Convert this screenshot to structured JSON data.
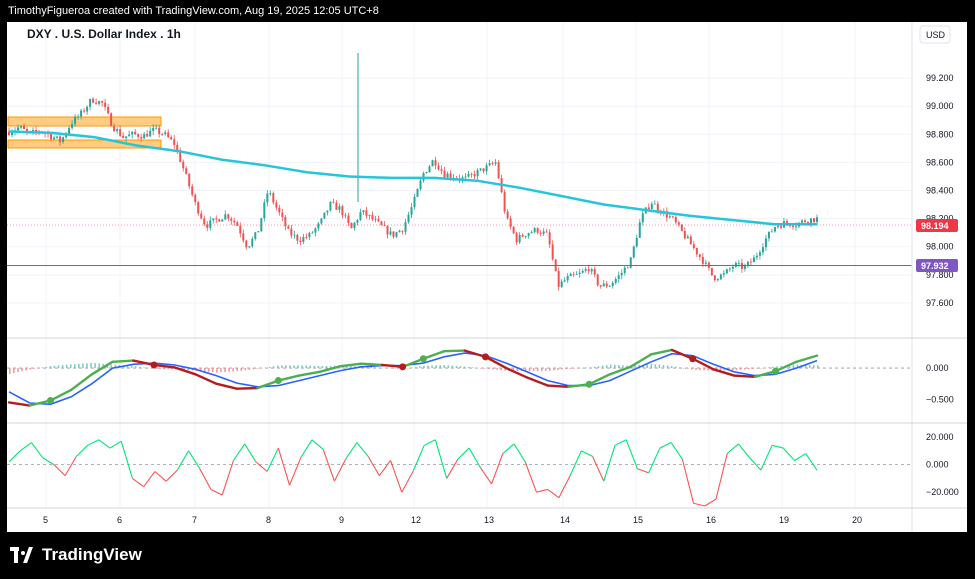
{
  "header": {
    "credit": "TimothyFigueroa created with TradingView.com, Aug 19, 2025 12:05 UTC+8"
  },
  "brand": {
    "name": "TradingView"
  },
  "chart_data": {
    "type": "candlestick",
    "title": "DXY . U.S. Dollar Index . 1h",
    "currency": "USD",
    "x_tick_labels": [
      "5",
      "6",
      "7",
      "8",
      "9",
      "12",
      "13",
      "14",
      "15",
      "16",
      "19",
      "20"
    ],
    "y_tick_labels": [
      "99.200",
      "99.000",
      "98.800",
      "98.600",
      "98.400",
      "98.200",
      "98.000",
      "97.800",
      "97.600"
    ],
    "ylim": [
      97.45,
      99.4
    ],
    "last_price": {
      "value": 98.194,
      "label": "98.194",
      "color": "#f23645"
    },
    "horizontal_line": {
      "value": 97.932,
      "label": "97.932",
      "color": "#7e57c2"
    },
    "supply_zones": [
      [
        98.87,
        98.92
      ],
      [
        98.7,
        98.75
      ]
    ],
    "price_path": [
      98.82,
      98.85,
      98.8,
      98.83,
      98.79,
      98.75,
      98.88,
      98.95,
      99.05,
      99.02,
      98.86,
      98.78,
      98.8,
      98.79,
      98.83,
      98.8,
      98.73,
      98.52,
      98.3,
      98.15,
      98.19,
      98.23,
      98.16,
      98.0,
      98.1,
      98.4,
      98.25,
      98.1,
      98.05,
      98.08,
      98.16,
      98.3,
      98.27,
      98.12,
      98.25,
      98.2,
      98.14,
      98.08,
      98.13,
      98.3,
      98.52,
      98.62,
      98.52,
      98.5,
      98.48,
      98.52,
      98.56,
      98.6,
      98.2,
      98.05,
      98.1,
      98.12,
      98.08,
      97.72,
      97.78,
      97.8,
      97.85,
      97.72,
      97.73,
      97.8,
      97.9,
      98.2,
      98.32,
      98.25,
      98.2,
      98.1,
      98.0,
      97.9,
      97.78,
      97.8,
      97.87,
      97.85,
      97.92,
      98.05,
      98.15,
      98.17,
      98.16,
      98.19,
      98.2
    ],
    "ma_line": {
      "color": "#26c6da",
      "values": [
        98.82,
        98.81,
        98.78,
        98.72,
        98.68,
        98.62,
        98.58,
        98.53,
        98.5,
        98.49,
        98.49,
        98.47,
        98.42,
        98.36,
        98.3,
        98.26,
        98.22,
        98.19,
        98.16,
        98.16
      ]
    },
    "macd": {
      "y_tick_labels": [
        "0.000",
        "−0.500"
      ],
      "ylim": [
        -0.8,
        0.45
      ],
      "fast": [
        -0.55,
        -0.6,
        -0.52,
        -0.35,
        -0.1,
        0.1,
        0.12,
        0.05,
        0.01,
        -0.1,
        -0.25,
        -0.33,
        -0.32,
        -0.2,
        -0.12,
        -0.06,
        0.03,
        0.07,
        0.05,
        0.02,
        0.15,
        0.27,
        0.28,
        0.18,
        0.0,
        -0.15,
        -0.28,
        -0.3,
        -0.26,
        -0.1,
        0.02,
        0.22,
        0.29,
        0.15,
        -0.02,
        -0.12,
        -0.14,
        -0.05,
        0.1,
        0.2
      ],
      "slow": [
        -0.38,
        -0.56,
        -0.58,
        -0.46,
        -0.25,
        0.0,
        0.06,
        0.08,
        0.05,
        -0.02,
        -0.12,
        -0.24,
        -0.3,
        -0.28,
        -0.2,
        -0.12,
        -0.04,
        0.02,
        0.04,
        0.04,
        0.08,
        0.18,
        0.24,
        0.2,
        0.08,
        -0.06,
        -0.2,
        -0.28,
        -0.28,
        -0.2,
        -0.05,
        0.1,
        0.23,
        0.2,
        0.06,
        -0.06,
        -0.12,
        -0.1,
        0.0,
        0.12
      ],
      "up_color": "#4caf50",
      "down_color": "#b71c1c",
      "signal_color": "#2962ff"
    },
    "oscillator": {
      "y_tick_labels": [
        "20.000",
        "0.000",
        "−20.000"
      ],
      "ylim": [
        -30,
        28
      ],
      "values": [
        2,
        10,
        16,
        5,
        0,
        -8,
        6,
        14,
        18,
        12,
        17,
        -10,
        -16,
        -5,
        -12,
        -4,
        10,
        -3,
        -18,
        -22,
        3,
        15,
        2,
        -5,
        12,
        -15,
        5,
        18,
        11,
        -12,
        4,
        16,
        6,
        -8,
        3,
        -20,
        -5,
        14,
        18,
        -10,
        4,
        12,
        -2,
        -14,
        8,
        15,
        2,
        -20,
        -18,
        -24,
        -8,
        10,
        6,
        -12,
        14,
        18,
        -3,
        -6,
        12,
        16,
        4,
        -28,
        -30,
        -25,
        8,
        15,
        5,
        -4,
        14,
        12,
        3,
        8,
        -4
      ]
    }
  }
}
